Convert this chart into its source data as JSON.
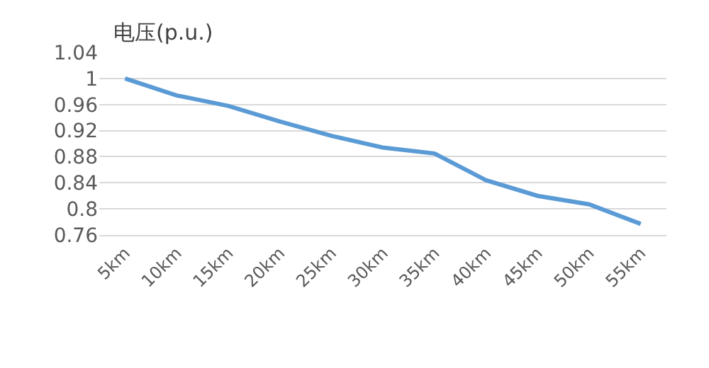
{
  "chart_data": {
    "type": "line",
    "ylabel": "电压(p.u.)",
    "categories": [
      "5km",
      "10km",
      "15km",
      "20km",
      "25km",
      "30km",
      "35km",
      "40km",
      "45km",
      "50km",
      "55km"
    ],
    "series": [
      {
        "color": "#5b9bd5",
        "values": [
          1.0,
          0.974,
          0.958,
          0.934,
          0.912,
          0.894,
          0.885,
          0.844,
          0.82,
          0.807,
          0.777
        ]
      }
    ],
    "ylim": [
      0.76,
      1.04
    ],
    "yticks": [
      0.76,
      0.8,
      0.84,
      0.88,
      0.92,
      0.96,
      1,
      1.04
    ],
    "grid": "y",
    "marker": "none",
    "line_style": "solid"
  }
}
